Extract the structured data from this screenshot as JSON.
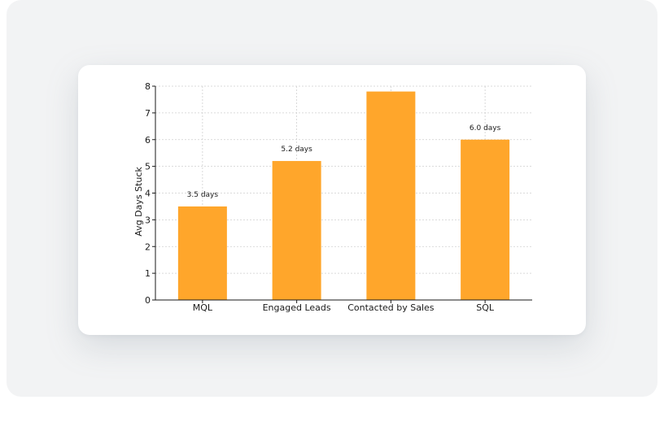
{
  "chart_data": {
    "type": "bar",
    "categories": [
      "MQL",
      "Engaged Leads",
      "Contacted by Sales",
      "SQL"
    ],
    "values": [
      3.5,
      5.2,
      7.8,
      6.0
    ],
    "data_labels": [
      "3.5 days",
      "5.2 days",
      "",
      "6.0 days"
    ],
    "title": "",
    "xlabel": "",
    "ylabel": "Avg Days Stuck",
    "ylim": [
      0,
      8
    ],
    "yticks": [
      "0",
      "1",
      "2",
      "3",
      "4",
      "5",
      "6",
      "7",
      "8"
    ],
    "grid": true,
    "bar_color": "#FFA62B"
  }
}
